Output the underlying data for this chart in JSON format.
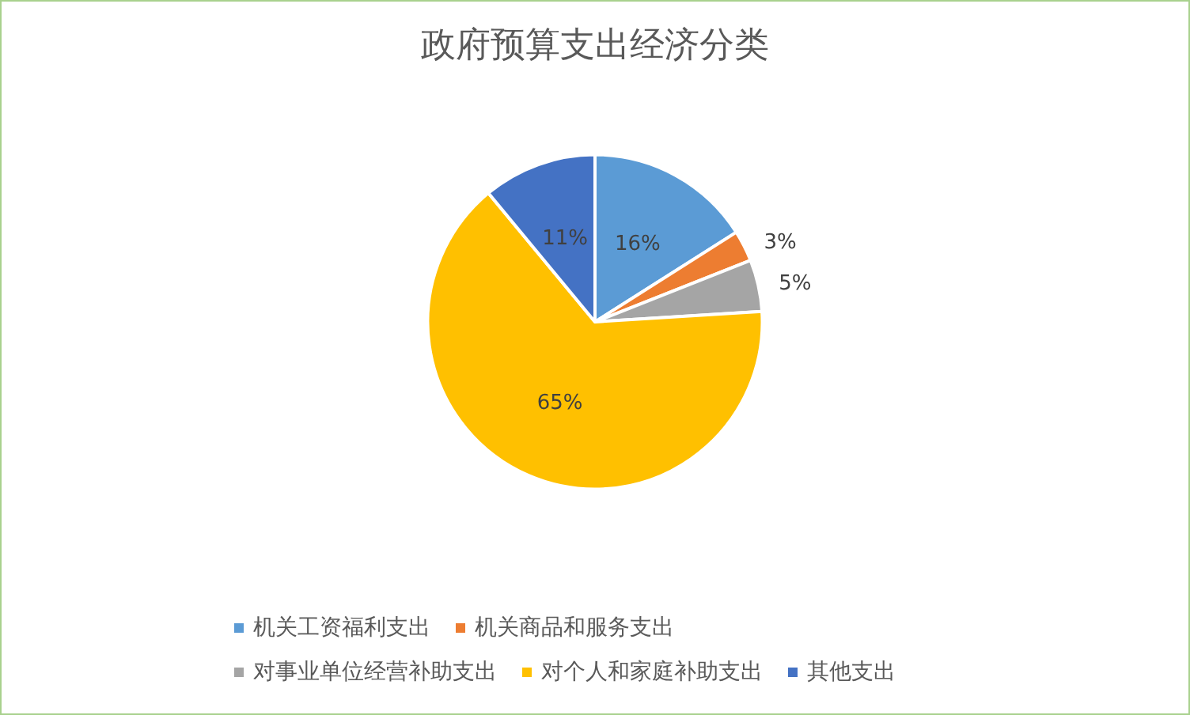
{
  "chart_data": {
    "type": "pie",
    "title": "政府预算支出经济分类",
    "categories": [
      "机关工资福利支出",
      "机关商品和服务支出",
      "对事业单位经营补助支出",
      "对个人和家庭补助支出",
      "其他支出"
    ],
    "values": [
      16,
      3,
      5,
      65,
      11
    ],
    "colors": [
      "#5b9bd5",
      "#ed7d31",
      "#a5a5a5",
      "#ffc000",
      "#4472c4"
    ],
    "value_labels": [
      "16%",
      "3%",
      "5%",
      "65%",
      "11%"
    ],
    "legend": "bottom"
  }
}
